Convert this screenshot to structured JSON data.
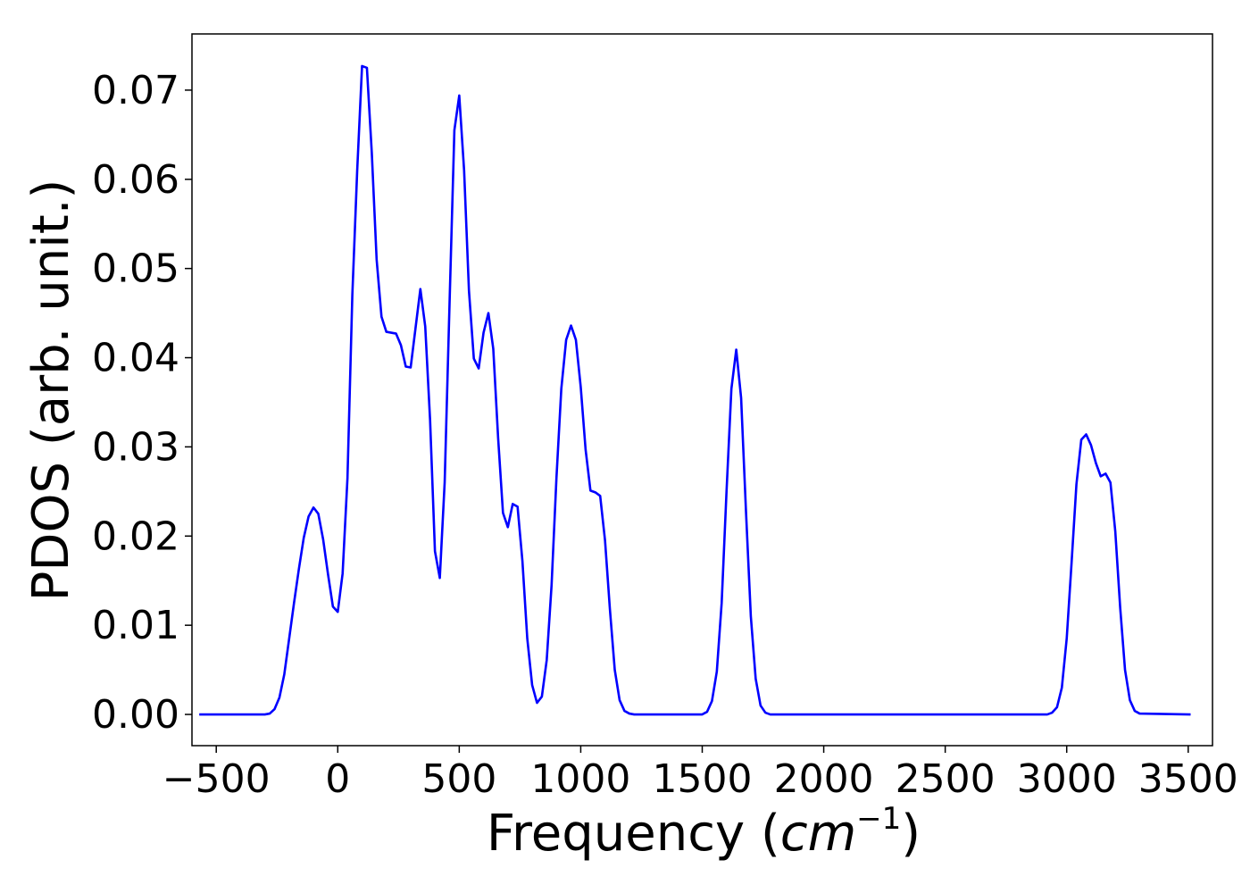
{
  "chart_data": {
    "type": "line",
    "title": "",
    "xlabel": "Frequency (",
    "xlabel_math": "cm",
    "xlabel_sup": "−1",
    "xlabel_end": ")",
    "ylabel": "PDOS (arb. unit.)",
    "xlim": [
      -600,
      3600
    ],
    "ylim": [
      -0.0035,
      0.0763
    ],
    "grid": false,
    "legend": "none",
    "line_color": "#0000ff",
    "x_ticks": [
      -500,
      0,
      500,
      1000,
      1500,
      2000,
      2500,
      3000,
      3500
    ],
    "x_tick_labels": [
      "−500",
      "0",
      "500",
      "1000",
      "1500",
      "2000",
      "2500",
      "3000",
      "3500"
    ],
    "y_ticks": [
      0.0,
      0.01,
      0.02,
      0.03,
      0.04,
      0.05,
      0.06,
      0.07
    ],
    "y_tick_labels": [
      "0.00",
      "0.01",
      "0.02",
      "0.03",
      "0.04",
      "0.05",
      "0.06",
      "0.07"
    ],
    "series": [
      {
        "x": [
          -570,
          -300,
          -280,
          -260,
          -240,
          -220,
          -200,
          -180,
          -160,
          -140,
          -120,
          -100,
          -80,
          -60,
          -40,
          -20,
          0,
          20,
          40,
          60,
          80,
          100,
          120,
          140,
          160,
          180,
          200,
          220,
          240,
          260,
          280,
          300,
          320,
          340,
          360,
          380,
          400,
          420,
          440,
          460,
          480,
          500,
          520,
          540,
          560,
          580,
          600,
          620,
          640,
          660,
          680,
          700,
          720,
          740,
          760,
          780,
          800,
          820,
          840,
          860,
          880,
          900,
          920,
          940,
          960,
          980,
          1000,
          1020,
          1040,
          1060,
          1080,
          1100,
          1120,
          1140,
          1160,
          1180,
          1200,
          1220,
          1240,
          1500,
          1520,
          1540,
          1560,
          1580,
          1600,
          1620,
          1640,
          1660,
          1680,
          1700,
          1720,
          1740,
          1760,
          1780,
          2920,
          2940,
          2960,
          2980,
          3000,
          3020,
          3040,
          3060,
          3080,
          3100,
          3120,
          3140,
          3160,
          3180,
          3200,
          3220,
          3240,
          3260,
          3280,
          3300,
          3510
        ],
        "y": [
          0.0,
          0.0,
          0.0001,
          0.0006,
          0.0019,
          0.0045,
          0.0085,
          0.0125,
          0.0163,
          0.0198,
          0.0222,
          0.0232,
          0.0225,
          0.0196,
          0.0157,
          0.0121,
          0.0115,
          0.0158,
          0.0265,
          0.047,
          0.061,
          0.0727,
          0.0725,
          0.063,
          0.051,
          0.0446,
          0.0429,
          0.0428,
          0.0427,
          0.0414,
          0.039,
          0.0389,
          0.0433,
          0.0477,
          0.0435,
          0.033,
          0.0183,
          0.0153,
          0.026,
          0.046,
          0.0655,
          0.0694,
          0.061,
          0.0475,
          0.0399,
          0.0388,
          0.0428,
          0.045,
          0.041,
          0.031,
          0.0226,
          0.021,
          0.0236,
          0.0233,
          0.0172,
          0.0085,
          0.0033,
          0.0013,
          0.002,
          0.0061,
          0.0145,
          0.0265,
          0.0365,
          0.042,
          0.0436,
          0.042,
          0.0367,
          0.0297,
          0.0251,
          0.0249,
          0.0245,
          0.0195,
          0.0118,
          0.005,
          0.0016,
          0.0004,
          0.0001,
          0.0,
          0.0,
          0.0,
          0.0003,
          0.0015,
          0.0048,
          0.0125,
          0.025,
          0.0365,
          0.0409,
          0.0355,
          0.0228,
          0.011,
          0.004,
          0.001,
          0.0002,
          0.0,
          0.0,
          0.0002,
          0.0008,
          0.003,
          0.0085,
          0.017,
          0.0258,
          0.0308,
          0.0314,
          0.0302,
          0.0282,
          0.0267,
          0.027,
          0.026,
          0.0205,
          0.012,
          0.005,
          0.0016,
          0.0004,
          0.0001,
          0.0
        ]
      }
    ]
  }
}
